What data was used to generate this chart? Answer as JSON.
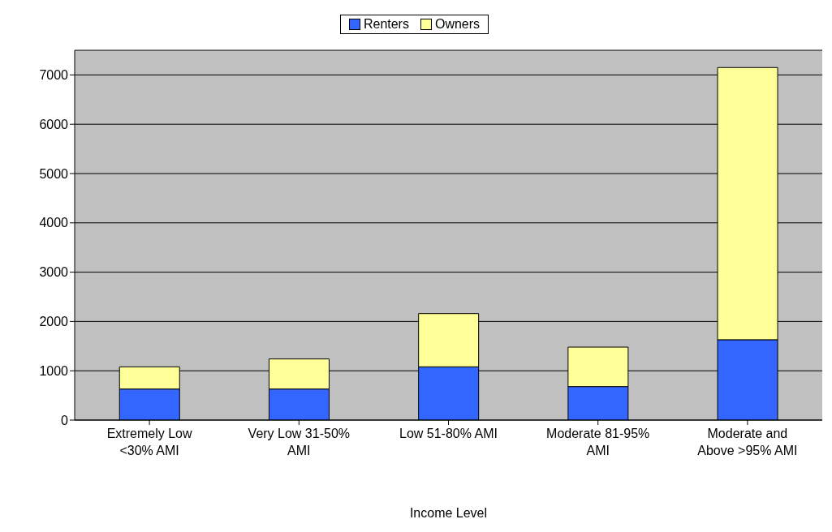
{
  "chart_data": {
    "type": "bar",
    "xlabel": "Income Level",
    "categories": [
      "Extremely Low <30% AMI",
      "Very Low 31-50% AMI",
      "Low 51-80% AMI",
      "Moderate 81-95% AMI",
      "Moderate and Above >95% AMI"
    ],
    "series": [
      {
        "name": "Renters",
        "color": "#3366ff",
        "values": [
          630,
          630,
          1080,
          680,
          1630
        ]
      },
      {
        "name": "Owners",
        "color": "#ffff99",
        "values": [
          450,
          610,
          1080,
          800,
          5520
        ]
      }
    ],
    "stacked": true,
    "ylim": [
      0,
      7500
    ],
    "yticks": [
      0,
      1000,
      2000,
      3000,
      4000,
      5000,
      6000,
      7000
    ],
    "grid": "y",
    "legend": "top"
  }
}
